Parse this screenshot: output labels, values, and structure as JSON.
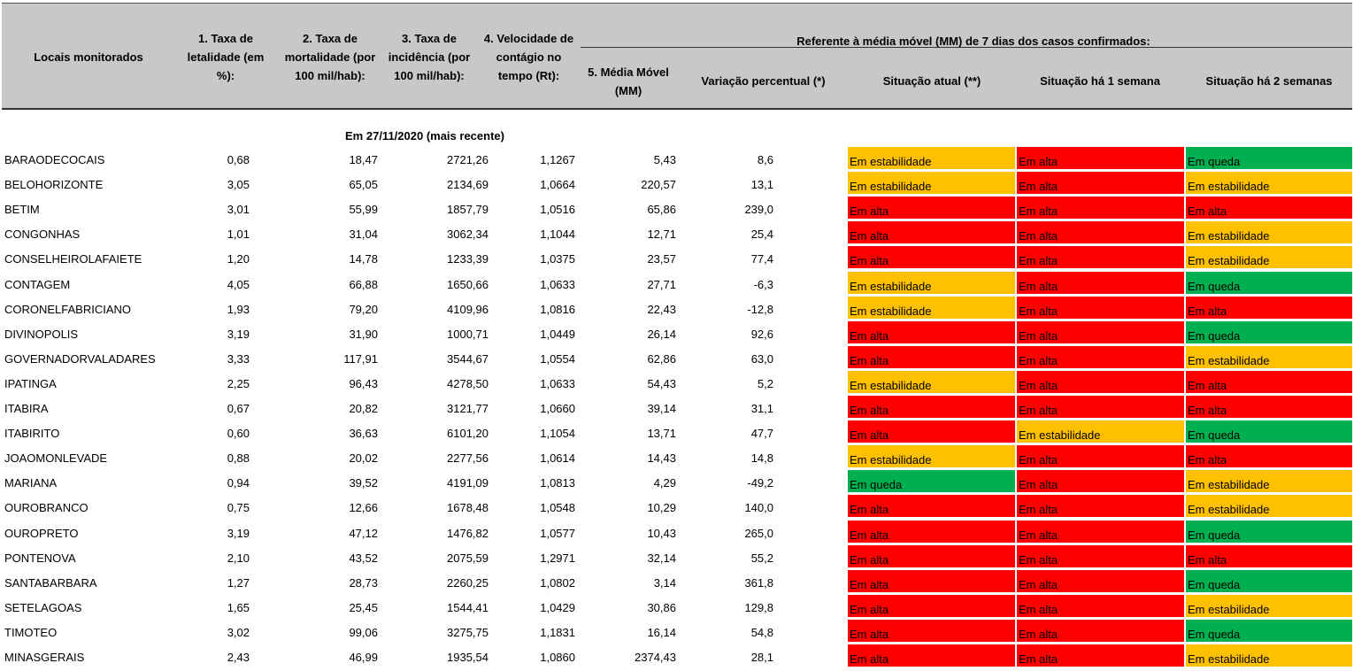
{
  "header": {
    "col0": "Locais monitorados",
    "col1": [
      "1. Taxa de",
      "letalidade (em",
      "%):"
    ],
    "col2": [
      "2. Taxa de",
      "mortalidade (por",
      "100 mil/hab):"
    ],
    "col3": [
      "3. Taxa de",
      "incidência (por",
      "100 mil/hab):"
    ],
    "col4": [
      "4. Velocidade de",
      "contágio no",
      "tempo (Rt):"
    ],
    "group": "Referente à média móvel (MM) de 7 dias  dos casos confirmados:",
    "col5": [
      "5. Média Móvel",
      "(MM)"
    ],
    "col6": "Variação percentual (*)",
    "col7": "Situação atual (**)",
    "col8": "Situação há 1 semana",
    "col9": "Situação há 2 semanas"
  },
  "subtitle": "Em 27/11/2020 (mais recente)",
  "status_colors": {
    "Em alta": "#ff0000",
    "Em estabilidade": "#ffc000",
    "Em queda": "#00b050"
  },
  "rows": [
    {
      "local": "BARAODECOCAIS",
      "let": "0,68",
      "mort": "18,47",
      "inc": "2721,26",
      "rt": "1,1267",
      "mm": "5,43",
      "var": "8,6",
      "s0": "Em estabilidade",
      "s1": "Em alta",
      "s2": "Em queda"
    },
    {
      "local": "BELOHORIZONTE",
      "let": "3,05",
      "mort": "65,05",
      "inc": "2134,69",
      "rt": "1,0664",
      "mm": "220,57",
      "var": "13,1",
      "s0": "Em estabilidade",
      "s1": "Em alta",
      "s2": "Em estabilidade"
    },
    {
      "local": "BETIM",
      "let": "3,01",
      "mort": "55,99",
      "inc": "1857,79",
      "rt": "1,0516",
      "mm": "65,86",
      "var": "239,0",
      "s0": "Em alta",
      "s1": "Em alta",
      "s2": "Em alta"
    },
    {
      "local": "CONGONHAS",
      "let": "1,01",
      "mort": "31,04",
      "inc": "3062,34",
      "rt": "1,1044",
      "mm": "12,71",
      "var": "25,4",
      "s0": "Em alta",
      "s1": "Em alta",
      "s2": "Em estabilidade"
    },
    {
      "local": "CONSELHEIROLAFAIETE",
      "let": "1,20",
      "mort": "14,78",
      "inc": "1233,39",
      "rt": "1,0375",
      "mm": "23,57",
      "var": "77,4",
      "s0": "Em alta",
      "s1": "Em alta",
      "s2": "Em estabilidade"
    },
    {
      "local": "CONTAGEM",
      "let": "4,05",
      "mort": "66,88",
      "inc": "1650,66",
      "rt": "1,0633",
      "mm": "27,71",
      "var": "-6,3",
      "s0": "Em estabilidade",
      "s1": "Em alta",
      "s2": "Em queda"
    },
    {
      "local": "CORONELFABRICIANO",
      "let": "1,93",
      "mort": "79,20",
      "inc": "4109,96",
      "rt": "1,0816",
      "mm": "22,43",
      "var": "-12,8",
      "s0": "Em estabilidade",
      "s1": "Em alta",
      "s2": "Em alta"
    },
    {
      "local": "DIVINOPOLIS",
      "let": "3,19",
      "mort": "31,90",
      "inc": "1000,71",
      "rt": "1,0449",
      "mm": "26,14",
      "var": "92,6",
      "s0": "Em alta",
      "s1": "Em alta",
      "s2": "Em queda"
    },
    {
      "local": "GOVERNADORVALADARES",
      "let": "3,33",
      "mort": "117,91",
      "inc": "3544,67",
      "rt": "1,0554",
      "mm": "62,86",
      "var": "63,0",
      "s0": "Em alta",
      "s1": "Em alta",
      "s2": "Em estabilidade"
    },
    {
      "local": "IPATINGA",
      "let": "2,25",
      "mort": "96,43",
      "inc": "4278,50",
      "rt": "1,0633",
      "mm": "54,43",
      "var": "5,2",
      "s0": "Em estabilidade",
      "s1": "Em alta",
      "s2": "Em alta"
    },
    {
      "local": "ITABIRA",
      "let": "0,67",
      "mort": "20,82",
      "inc": "3121,77",
      "rt": "1,0660",
      "mm": "39,14",
      "var": "31,1",
      "s0": "Em alta",
      "s1": "Em alta",
      "s2": "Em alta"
    },
    {
      "local": "ITABIRITO",
      "let": "0,60",
      "mort": "36,63",
      "inc": "6101,20",
      "rt": "1,1054",
      "mm": "13,71",
      "var": "47,7",
      "s0": "Em alta",
      "s1": "Em estabilidade",
      "s2": "Em queda"
    },
    {
      "local": "JOAOMONLEVADE",
      "let": "0,88",
      "mort": "20,02",
      "inc": "2277,56",
      "rt": "1,0614",
      "mm": "14,43",
      "var": "14,8",
      "s0": "Em estabilidade",
      "s1": "Em alta",
      "s2": "Em alta"
    },
    {
      "local": "MARIANA",
      "let": "0,94",
      "mort": "39,52",
      "inc": "4191,09",
      "rt": "1,0813",
      "mm": "4,29",
      "var": "-49,2",
      "s0": "Em queda",
      "s1": "Em alta",
      "s2": "Em estabilidade"
    },
    {
      "local": "OUROBRANCO",
      "let": "0,75",
      "mort": "12,66",
      "inc": "1678,48",
      "rt": "1,0548",
      "mm": "10,29",
      "var": "140,0",
      "s0": "Em alta",
      "s1": "Em alta",
      "s2": "Em estabilidade"
    },
    {
      "local": "OUROPRETO",
      "let": "3,19",
      "mort": "47,12",
      "inc": "1476,82",
      "rt": "1,0577",
      "mm": "10,43",
      "var": "265,0",
      "s0": "Em alta",
      "s1": "Em alta",
      "s2": "Em queda"
    },
    {
      "local": "PONTENOVA",
      "let": "2,10",
      "mort": "43,52",
      "inc": "2075,59",
      "rt": "1,2971",
      "mm": "32,14",
      "var": "55,2",
      "s0": "Em alta",
      "s1": "Em alta",
      "s2": "Em alta"
    },
    {
      "local": "SANTABARBARA",
      "let": "1,27",
      "mort": "28,73",
      "inc": "2260,25",
      "rt": "1,0802",
      "mm": "3,14",
      "var": "361,8",
      "s0": "Em alta",
      "s1": "Em alta",
      "s2": "Em queda"
    },
    {
      "local": "SETELAGOAS",
      "let": "1,65",
      "mort": "25,45",
      "inc": "1544,41",
      "rt": "1,0429",
      "mm": "30,86",
      "var": "129,8",
      "s0": "Em alta",
      "s1": "Em alta",
      "s2": "Em estabilidade"
    },
    {
      "local": "TIMOTEO",
      "let": "3,02",
      "mort": "99,06",
      "inc": "3275,75",
      "rt": "1,1831",
      "mm": "16,14",
      "var": "54,8",
      "s0": "Em alta",
      "s1": "Em alta",
      "s2": "Em queda"
    },
    {
      "local": "MINASGERAIS",
      "let": "2,43",
      "mort": "46,99",
      "inc": "1935,54",
      "rt": "1,0860",
      "mm": "2374,43",
      "var": "28,1",
      "s0": "Em alta",
      "s1": "Em alta",
      "s2": "Em estabilidade"
    }
  ]
}
